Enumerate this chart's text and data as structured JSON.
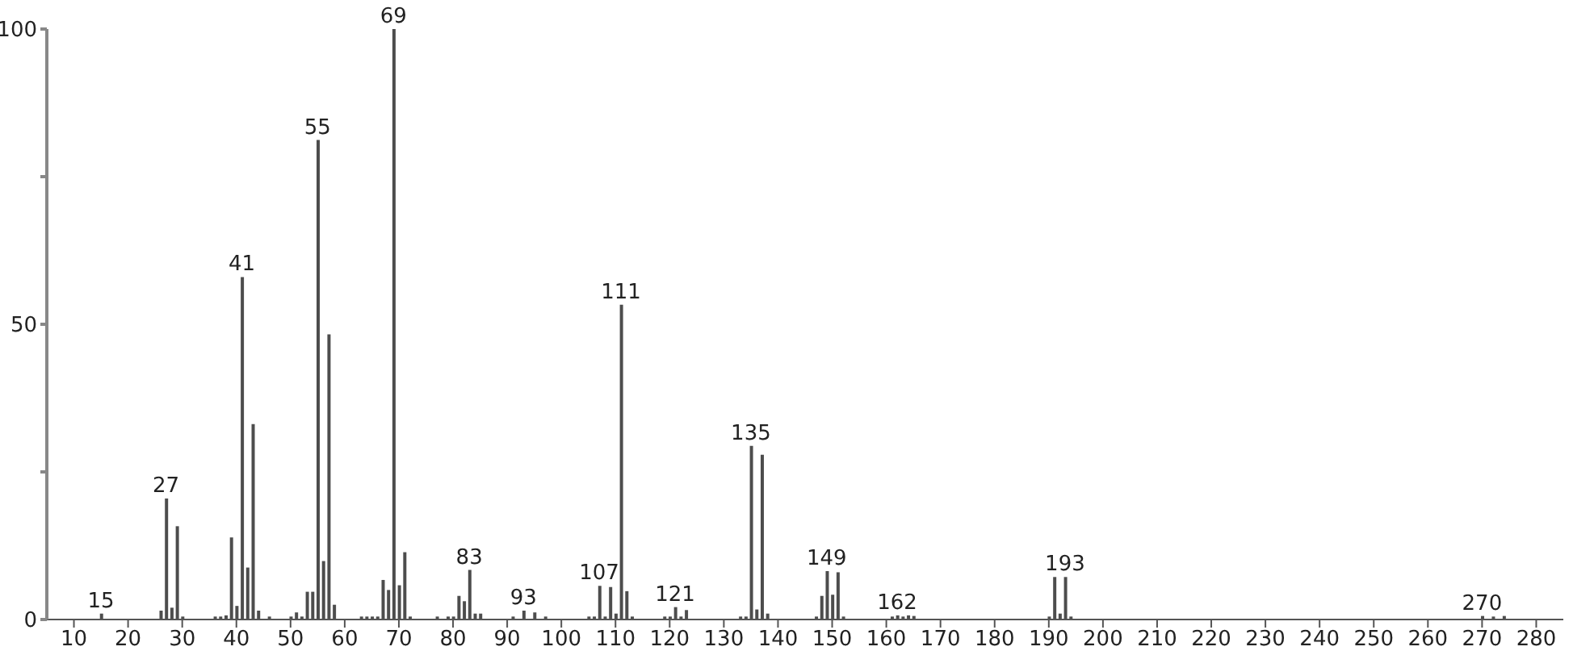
{
  "chart_data": {
    "type": "bar",
    "x": [
      15,
      26,
      27,
      28,
      29,
      30,
      36,
      37,
      38,
      39,
      40,
      41,
      42,
      43,
      44,
      46,
      50,
      51,
      52,
      53,
      54,
      55,
      56,
      57,
      58,
      63,
      64,
      65,
      66,
      67,
      68,
      69,
      70,
      71,
      72,
      77,
      79,
      80,
      81,
      82,
      83,
      84,
      85,
      91,
      93,
      95,
      97,
      105,
      106,
      107,
      108,
      109,
      110,
      111,
      112,
      113,
      119,
      120,
      121,
      122,
      123,
      133,
      134,
      135,
      136,
      137,
      138,
      147,
      148,
      149,
      150,
      151,
      152,
      161,
      162,
      163,
      164,
      165,
      190,
      191,
      192,
      193,
      194,
      270,
      272,
      274
    ],
    "values": [
      1,
      1.5,
      20.5,
      2,
      15.8,
      0.5,
      0.5,
      0.5,
      0.7,
      13.9,
      2.3,
      58,
      8.8,
      33.1,
      1.5,
      0.5,
      0.5,
      1.2,
      0.5,
      4.7,
      4.7,
      81.2,
      9.9,
      48.3,
      2.5,
      0.5,
      0.5,
      0.5,
      0.5,
      6.7,
      5,
      100,
      5.8,
      11.4,
      0.5,
      0.5,
      0.5,
      0.5,
      4,
      3.1,
      8.4,
      1,
      1,
      0.5,
      1.5,
      1.2,
      0.5,
      0.5,
      0.5,
      5.7,
      0.5,
      5.5,
      1,
      53.3,
      4.8,
      0.5,
      0.5,
      0.5,
      2.1,
      0.5,
      1.6,
      0.5,
      0.5,
      29.4,
      1.7,
      27.9,
      1,
      0.5,
      4,
      8.2,
      4.2,
      8,
      0.5,
      0.5,
      0.7,
      0.5,
      0.7,
      0.6,
      0.5,
      7.2,
      1,
      7.2,
      0.5,
      0.6,
      0.5,
      0.6
    ],
    "color": "#4d4d4d",
    "annotations": [
      {
        "text": "15",
        "x": 15,
        "y": 1
      },
      {
        "text": "27",
        "x": 27,
        "y": 20.5
      },
      {
        "text": "41",
        "x": 41,
        "y": 58
      },
      {
        "text": "55",
        "x": 55,
        "y": 81.2
      },
      {
        "text": "69",
        "x": 69,
        "y": 100
      },
      {
        "text": "83",
        "x": 83,
        "y": 8.4
      },
      {
        "text": "93",
        "x": 93,
        "y": 1.5
      },
      {
        "text": "107",
        "x": 107,
        "y": 5.7
      },
      {
        "text": "111",
        "x": 111,
        "y": 53.3
      },
      {
        "text": "121",
        "x": 121,
        "y": 2.1
      },
      {
        "text": "135",
        "x": 135,
        "y": 29.4
      },
      {
        "text": "149",
        "x": 149,
        "y": 8.2
      },
      {
        "text": "162",
        "x": 162,
        "y": 0.7
      },
      {
        "text": "193",
        "x": 193,
        "y": 7.2
      },
      {
        "text": "270",
        "x": 270,
        "y": 0.6
      }
    ],
    "xlim": [
      5,
      285
    ],
    "xticks": [
      10,
      20,
      30,
      40,
      50,
      60,
      70,
      80,
      90,
      100,
      110,
      120,
      130,
      140,
      150,
      160,
      170,
      180,
      190,
      200,
      210,
      220,
      230,
      240,
      250,
      260,
      270,
      280
    ],
    "ylim": [
      0,
      100
    ],
    "yticks": [
      0,
      {
        "value": 25,
        "label": null
      },
      50,
      {
        "value": 75,
        "label": null
      },
      100
    ]
  }
}
